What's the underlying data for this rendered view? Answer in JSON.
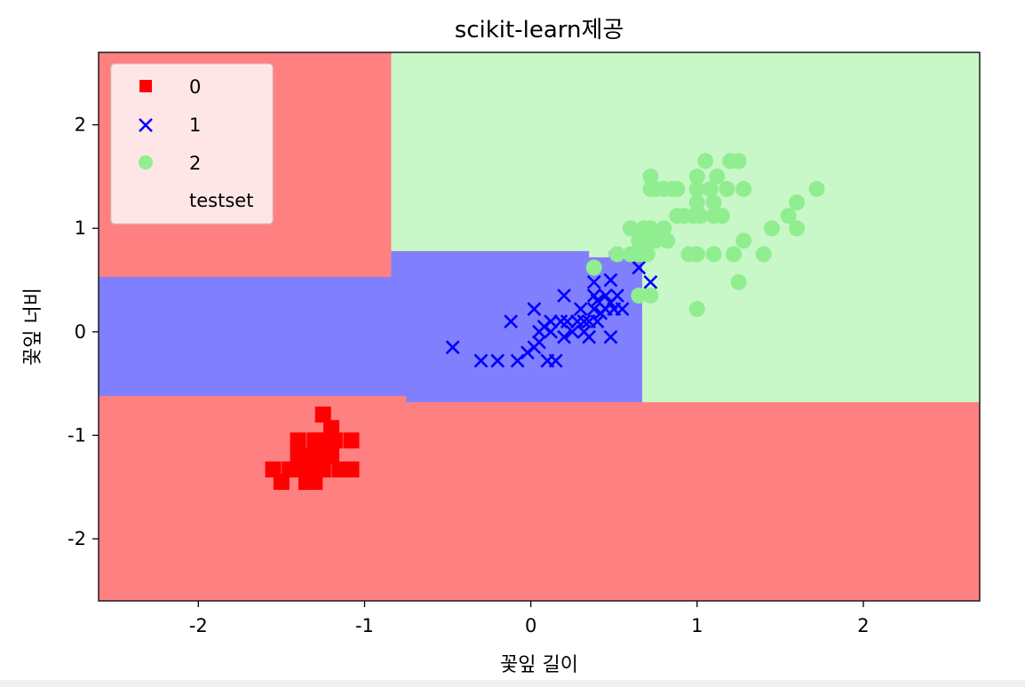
{
  "chart_data": {
    "type": "scatter",
    "title": "scikit-learn제공",
    "xlabel": "꽃잎 길이",
    "ylabel": "꽃잎 너비",
    "xlim": [
      -2.6,
      2.7
    ],
    "ylim": [
      -2.6,
      2.7
    ],
    "xticks": [
      -2,
      -1,
      0,
      1,
      2
    ],
    "yticks": [
      -2,
      -1,
      0,
      1,
      2
    ],
    "grid": false,
    "legend_position": "top-left",
    "decision_regions": {
      "colors": {
        "0": "#ff8080",
        "1": "#8080ff",
        "2": "#c8f7c8"
      },
      "class_1_region": [
        [
          -2.6,
          0.53
        ],
        [
          -0.84,
          0.53
        ],
        [
          -0.84,
          0.78
        ],
        [
          0.35,
          0.78
        ],
        [
          0.35,
          0.72
        ],
        [
          0.47,
          0.72
        ],
        [
          0.47,
          0.78
        ],
        [
          0.67,
          0.78
        ],
        [
          0.67,
          -0.68
        ],
        [
          -0.75,
          -0.68
        ],
        [
          -0.75,
          -0.62
        ],
        [
          -2.6,
          -0.62
        ]
      ],
      "class_2_region": [
        [
          -0.84,
          2.7
        ],
        [
          2.7,
          2.7
        ],
        [
          2.7,
          -0.68
        ],
        [
          0.67,
          -0.68
        ],
        [
          0.67,
          0.78
        ],
        [
          0.47,
          0.78
        ],
        [
          0.47,
          0.72
        ],
        [
          0.35,
          0.72
        ],
        [
          0.35,
          0.78
        ],
        [
          -0.84,
          0.78
        ]
      ]
    },
    "series": [
      {
        "name": "0",
        "marker": "square",
        "color": "#ff0000",
        "points": [
          [
            -1.55,
            -1.33
          ],
          [
            -1.5,
            -1.45
          ],
          [
            -1.45,
            -1.33
          ],
          [
            -1.4,
            -1.05
          ],
          [
            -1.4,
            -1.2
          ],
          [
            -1.4,
            -1.33
          ],
          [
            -1.35,
            -1.33
          ],
          [
            -1.35,
            -1.45
          ],
          [
            -1.33,
            -1.2
          ],
          [
            -1.3,
            -1.05
          ],
          [
            -1.3,
            -1.33
          ],
          [
            -1.3,
            -1.45
          ],
          [
            -1.28,
            -1.2
          ],
          [
            -1.25,
            -0.8
          ],
          [
            -1.25,
            -1.05
          ],
          [
            -1.25,
            -1.33
          ],
          [
            -1.2,
            -1.2
          ],
          [
            -1.2,
            -0.93
          ],
          [
            -1.18,
            -1.05
          ],
          [
            -1.15,
            -1.33
          ],
          [
            -1.08,
            -1.05
          ],
          [
            -1.08,
            -1.33
          ]
        ]
      },
      {
        "name": "1",
        "marker": "x",
        "color": "#0000ff",
        "points": [
          [
            -0.47,
            -0.15
          ],
          [
            -0.3,
            -0.28
          ],
          [
            -0.2,
            -0.28
          ],
          [
            -0.12,
            0.1
          ],
          [
            -0.08,
            -0.28
          ],
          [
            -0.02,
            -0.2
          ],
          [
            0.02,
            0.22
          ],
          [
            0.02,
            -0.15
          ],
          [
            0.05,
            0.0
          ],
          [
            0.05,
            -0.1
          ],
          [
            0.08,
            0.05
          ],
          [
            0.1,
            -0.28
          ],
          [
            0.12,
            0.1
          ],
          [
            0.12,
            0.0
          ],
          [
            0.15,
            -0.28
          ],
          [
            0.18,
            0.1
          ],
          [
            0.2,
            0.35
          ],
          [
            0.2,
            -0.05
          ],
          [
            0.22,
            0.1
          ],
          [
            0.25,
            0.0
          ],
          [
            0.28,
            0.1
          ],
          [
            0.3,
            0.22
          ],
          [
            0.32,
            0.0
          ],
          [
            0.32,
            0.1
          ],
          [
            0.35,
            -0.05
          ],
          [
            0.35,
            0.1
          ],
          [
            0.38,
            0.22
          ],
          [
            0.38,
            0.35
          ],
          [
            0.38,
            0.48
          ],
          [
            0.4,
            0.3
          ],
          [
            0.4,
            0.1
          ],
          [
            0.42,
            0.18
          ],
          [
            0.45,
            0.22
          ],
          [
            0.45,
            0.35
          ],
          [
            0.48,
            0.5
          ],
          [
            0.48,
            0.28
          ],
          [
            0.48,
            -0.05
          ],
          [
            0.5,
            0.22
          ],
          [
            0.52,
            0.35
          ],
          [
            0.55,
            0.22
          ],
          [
            0.65,
            0.62
          ],
          [
            0.72,
            0.48
          ]
        ]
      },
      {
        "name": "2",
        "marker": "circle",
        "color": "#90ee90",
        "points": [
          [
            0.38,
            0.62
          ],
          [
            0.52,
            0.75
          ],
          [
            0.6,
            0.75
          ],
          [
            0.6,
            1.0
          ],
          [
            0.65,
            0.35
          ],
          [
            0.65,
            0.75
          ],
          [
            0.65,
            0.88
          ],
          [
            0.68,
            1.0
          ],
          [
            0.7,
            0.88
          ],
          [
            0.7,
            0.75
          ],
          [
            0.72,
            0.35
          ],
          [
            0.72,
            1.0
          ],
          [
            0.75,
            0.88
          ],
          [
            0.8,
            1.0
          ],
          [
            0.82,
            0.88
          ],
          [
            0.72,
            1.38
          ],
          [
            0.72,
            1.5
          ],
          [
            0.75,
            1.38
          ],
          [
            0.8,
            1.38
          ],
          [
            0.85,
            1.38
          ],
          [
            0.88,
            1.38
          ],
          [
            0.88,
            1.12
          ],
          [
            0.92,
            1.12
          ],
          [
            0.95,
            0.75
          ],
          [
            0.98,
            1.12
          ],
          [
            1.0,
            0.22
          ],
          [
            1.0,
            0.75
          ],
          [
            1.0,
            1.25
          ],
          [
            1.0,
            1.38
          ],
          [
            1.0,
            1.5
          ],
          [
            1.02,
            1.12
          ],
          [
            1.05,
            1.65
          ],
          [
            1.08,
            1.38
          ],
          [
            1.1,
            1.25
          ],
          [
            1.1,
            1.12
          ],
          [
            1.1,
            0.75
          ],
          [
            1.12,
            1.5
          ],
          [
            1.15,
            1.12
          ],
          [
            1.18,
            1.38
          ],
          [
            1.2,
            1.65
          ],
          [
            1.22,
            0.75
          ],
          [
            1.25,
            0.48
          ],
          [
            1.25,
            1.65
          ],
          [
            1.28,
            1.38
          ],
          [
            1.28,
            0.88
          ],
          [
            1.4,
            0.75
          ],
          [
            1.45,
            1.0
          ],
          [
            1.55,
            1.12
          ],
          [
            1.6,
            1.25
          ],
          [
            1.6,
            1.0
          ],
          [
            1.72,
            1.38
          ]
        ]
      }
    ],
    "legend_entries": [
      "0",
      "1",
      "2",
      "testset"
    ]
  }
}
